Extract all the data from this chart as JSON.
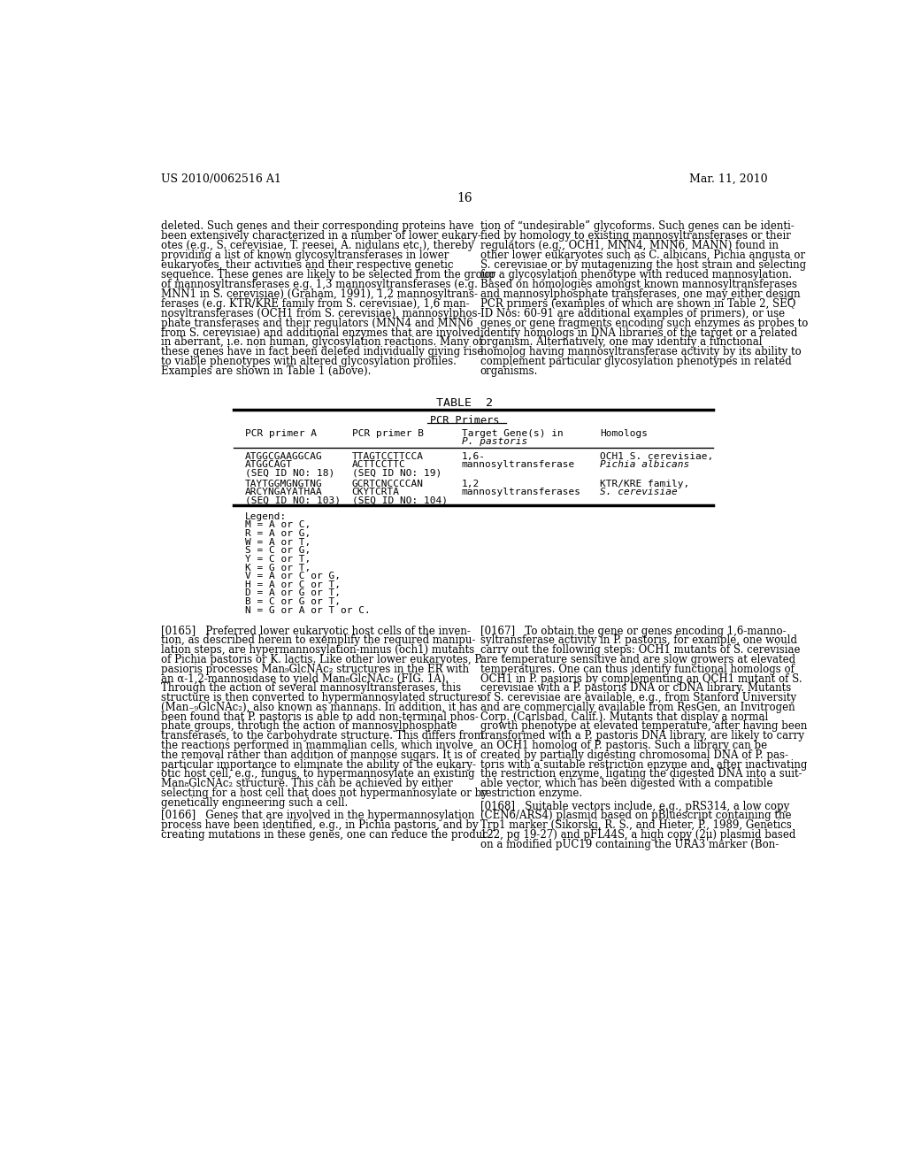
{
  "bg_color": "#ffffff",
  "header_left": "US 2010/0062516 A1",
  "header_right": "Mar. 11, 2010",
  "page_number": "16",
  "legend_lines": [
    "Legend:",
    "M = A or C,",
    "R = A or G,",
    "W = A or T,",
    "S = C or G,",
    "Y = C or T,",
    "K = G or T,",
    "V = A or C or G,",
    "H = A or C or T,",
    "D = A or G or T,",
    "B = C or G or T,",
    "N = G or A or T or C."
  ],
  "left_top_lines": [
    "deleted. Such genes and their corresponding proteins have",
    "been extensively characterized in a number of lower eukary-",
    "otes (e.g., S. cerevisiae, T. reesei, A. nidulans etc.), thereby",
    "providing a list of known glycosyltransferases in lower",
    "eukaryotes, their activities and their respective genetic",
    "sequence. These genes are likely to be selected from the group",
    "of mannosyltransferases e.g. 1,3 mannosyltransferases (e.g.",
    "MNN1 in S. cerevisiae) (Graham, 1991), 1,2 mannosyltrans-",
    "ferases (e.g. KTR/KRE family from S. cerevisiae), 1,6 man-",
    "nosyltransferases (OCH1 from S. cerevisiae), mannosylphos-",
    "phate transferases and their regulators (MNN4 and MNN6",
    "from S. cerevisiae) and additional enzymes that are involved",
    "in aberrant, i.e. non human, glycosylation reactions. Many of",
    "these genes have in fact been deleted individually giving rise",
    "to viable phenotypes with altered glycosylation profiles.",
    "Examples are shown in Table 1 (above)."
  ],
  "right_top_lines": [
    "tion of “undesirable” glycoforms. Such genes can be identi-",
    "fied by homology to existing mannosyltransferases or their",
    "regulators (e.g., OCH1, MNN4, MNN6, MANN) found in",
    "other lower eukaryotes such as C. albicans, Pichia angusta or",
    "S. cerevisiae or by mutagenizing the host strain and selecting",
    "for a glycosylation phenotype with reduced mannosylation.",
    "Based on homologies amongst known mannosyltransferases",
    "and mannosylphosphate transferases, one may either design",
    "PCR primers (examples of which are shown in Table 2, SEQ",
    "ID Nos: 60-91 are additional examples of primers), or use",
    "genes or gene fragments encoding such enzymes as probes to",
    "identify homologs in DNA libraries of the target or a related",
    "organism. Alternatively, one may identify a functional",
    "homolog having mannosyltransferase activity by its ability to",
    "complement particular glycosylation phenotypes in related",
    "organisms."
  ],
  "p165_lines": [
    "[0165]   Preferred lower eukaryotic host cells of the inven-",
    "tion, as described herein to exemplify the required manipu-",
    "lation steps, are hypermannosylation-minus (och1) mutants",
    "of Pichia pastoris or K. lactis. Like other lower eukaryotes, P.",
    "pasioris processes Man₉GlcNAc₂ structures in the ER with",
    "an α-1,2-mannosidase to yield Man₈GlcNAc₂ (FIG. 1A).",
    "Through the action of several mannosyltransferases, this",
    "structure is then converted to hypermannosylated structures",
    "(Man₋₉GlcNAc₂), also known as mannans. In addition, it has",
    "been found that P. pastoris is able to add non-terminal phos-",
    "phate groups, through the action of mannosylphosphate",
    "transferases, to the carbohydrate structure. This differs from",
    "the reactions performed in mammalian cells, which involve",
    "the removal rather than addition of mannose sugars. It is of",
    "particular importance to eliminate the ability of the eukary-",
    "otic host cell, e.g., fungus, to hypermannosylate an existing",
    "Man₈GlcNAc₂ structure. This can be achieved by either",
    "selecting for a host cell that does not hypermannosylate or by",
    "genetically engineering such a cell."
  ],
  "p166_lines": [
    "[0166]   Genes that are involved in the hypermannosylation",
    "process have been identified, e.g., in Pichia pastoris, and by",
    "creating mutations in these genes, one can reduce the produc-"
  ],
  "p167_lines": [
    "[0167]   To obtain the gene or genes encoding 1,6-manno-",
    "syltransferase activity in P. pastoris, for example, one would",
    "carry out the following steps: OCH1 mutants of S. cerevisiae",
    "are temperature sensitive and are slow growers at elevated",
    "temperatures. One can thus identify functional homologs of",
    "OCH1 in P. pasioris by complementing an OCH1 mutant of S.",
    "cerevisiae with a P. pastoris DNA or cDNA library. Mutants",
    "of S. cerevisiae are available, e.g., from Stanford University",
    "and are commercially available from ResGen, an Invitrogen",
    "Corp. (Carlsbad, Calif.). Mutants that display a normal",
    "growth phenotype at elevated temperature, after having been",
    "transformed with a P. pastoris DNA library, are likely to carry",
    "an OCH1 homolog of P. pastoris. Such a library can be",
    "created by partially digesting chromosomal DNA of P. pas-",
    "toris with a suitable restriction enzyme and, after inactivating",
    "the restriction enzyme, ligating the digested DNA into a suit-",
    "able vector, which has been digested with a compatible",
    "restriction enzyme."
  ],
  "p168_lines": [
    "[0168]   Suitable vectors include, e.g., pRS314, a low copy",
    "(CEN6/ARS4) plasmid based on pBluescript containing the",
    "Trp1 marker (Sikorski, R. S., and Hieter, P., 1989, Genetics",
    "122, pg 19-27) and pFL44S, a high copy (2μ) plasmid based",
    "on a modified pUC19 containing the URA3 marker (Bon-"
  ],
  "table_title": "TABLE  2",
  "pcr_header": "PCR Primers",
  "col_a_header": "PCR primer A",
  "col_b_header": "PCR primer B",
  "col_c_header1": "Target Gene(s) in",
  "col_c_header2": "P. pastoris",
  "col_d_header": "Homologs",
  "row1_a1": "ATGGCGAAGGCAG",
  "row1_a2": "ATGGCAGT",
  "row1_a3": "(SEQ ID NO: 18)",
  "row1_b1": "TTAGTCCTTCCA",
  "row1_b2": "ACTTCCTTC",
  "row1_b3": "(SEQ ID NO: 19)",
  "row1_c1": "1,6-",
  "row1_c2": "mannosyltransferase",
  "row1_d1": "OCH1 S. cerevisiae,",
  "row1_d2": "Pichia albicans",
  "row2_a1": "TAYTGGMGNGTNG",
  "row2_a2": "ARCYNGAYATHAA",
  "row2_a3": "(SEQ ID NO: 103)",
  "row2_b1": "GCRTCNCCCCAN",
  "row2_b2": "CKYTCRTA",
  "row2_b3": "(SEQ ID NO: 104)",
  "row2_c1": "1,2",
  "row2_c2": "mannosyltransferases",
  "row2_d1": "KTR/KRE family,",
  "row2_d2": "S. cerevisiae"
}
